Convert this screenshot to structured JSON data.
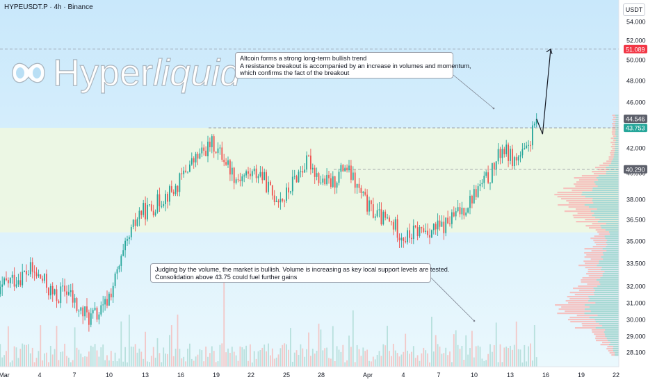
{
  "header": {
    "title": "HYPEUSDT.P · 4h · Binance"
  },
  "currency_button": "USDT",
  "logo": {
    "text_main": "Hyper",
    "text_italic": "liquid"
  },
  "annotations": {
    "top": [
      "Altcoin forms a strong long-term bullish trend",
      "A resistance breakout is accompanied by an increase in volumes and momentum,",
      "which confirms the fact of the breakout"
    ],
    "bottom": [
      "Judging by the volume, the market is bullish. Volume is increasing as key local support levels are tested.",
      "Consolidation above 43.75 could fuel further gains"
    ]
  },
  "colors": {
    "up": "#26a69a",
    "down": "#ef5350",
    "bg_top": "#c9e8fb",
    "bg_bottom": "#e9f7fd",
    "zone": "#eef7e2",
    "profile_down": "#f7b8b6",
    "profile_up": "#9fdcd6",
    "tag_red": "#f23645",
    "tag_dark": "#5d606b",
    "tag_green": "#26a69a"
  },
  "chart_data": {
    "type": "candlestick",
    "symbol": "HYPEUSDT.P",
    "timeframe": "4h",
    "exchange": "Binance",
    "y_range": [
      27.5,
      56.0
    ],
    "y_ticks": [
      "54.000",
      "52.000",
      "50.000",
      "48.000",
      "46.000",
      "42.000",
      "40.000",
      "38.000",
      "36.500",
      "35.000",
      "33.500",
      "32.000",
      "31.000",
      "30.000",
      "29.000",
      "28.100"
    ],
    "x_ticks": [
      "Mar",
      "4",
      "7",
      "10",
      "13",
      "16",
      "19",
      "22",
      "25",
      "28",
      "Apr",
      "4",
      "7",
      "10",
      "13",
      "16",
      "19",
      "22"
    ],
    "price_tags": [
      {
        "value": 51.089,
        "label": "51.089",
        "style": "red"
      },
      {
        "value": 44.546,
        "label": "44.546",
        "style": "dark"
      },
      {
        "value": 43.753,
        "label": "43.753",
        "style": "green"
      },
      {
        "value": 40.29,
        "label": "40.290",
        "style": "dark"
      }
    ],
    "support_zone": [
      35.6,
      43.753
    ],
    "dashed_levels": [
      51.089,
      43.753,
      40.29
    ],
    "closes_anchors": [
      [
        "Feb 28",
        31.0
      ],
      [
        "Mar 1",
        32.2
      ],
      [
        "Mar 3",
        33.0
      ],
      [
        "Mar 4",
        32.4
      ],
      [
        "Mar 5",
        31.3
      ],
      [
        "Mar 6",
        31.8
      ],
      [
        "Mar 7",
        30.5
      ],
      [
        "Mar 8",
        30.1
      ],
      [
        "Mar 9",
        30.5
      ],
      [
        "Mar 10",
        32.4
      ],
      [
        "Mar 11",
        34.8
      ],
      [
        "Mar 12",
        37.0
      ],
      [
        "Mar 13",
        37.3
      ],
      [
        "Mar 14",
        38.2
      ],
      [
        "Mar 15",
        38.8
      ],
      [
        "Mar 16",
        40.5
      ],
      [
        "Mar 17",
        41.4
      ],
      [
        "Mar 18",
        42.4
      ],
      [
        "Mar 19",
        41.2
      ],
      [
        "Mar 20",
        39.6
      ],
      [
        "Mar 21",
        39.9
      ],
      [
        "Mar 22",
        40.0
      ],
      [
        "Mar 23",
        38.3
      ],
      [
        "Mar 24",
        38.1
      ],
      [
        "Mar 25",
        39.8
      ],
      [
        "Mar 26",
        41.0
      ],
      [
        "Mar 27",
        39.4
      ],
      [
        "Mar 28",
        39.2
      ],
      [
        "Mar 29",
        40.6
      ],
      [
        "Mar 30",
        38.9
      ],
      [
        "Mar 31",
        37.3
      ],
      [
        "Apr 1",
        36.6
      ],
      [
        "Apr 2",
        36.1
      ],
      [
        "Apr 3",
        35.2
      ],
      [
        "Apr 4",
        35.7
      ],
      [
        "Apr 5",
        35.8
      ],
      [
        "Apr 6",
        35.9
      ],
      [
        "Apr 7",
        36.7
      ],
      [
        "Apr 8",
        37.5
      ],
      [
        "Apr 9",
        38.8
      ],
      [
        "Apr 10",
        39.8
      ],
      [
        "Apr 11",
        42.0
      ],
      [
        "Apr 12",
        41.0
      ],
      [
        "Apr 13",
        41.7
      ],
      [
        "Apr 13 20:00",
        44.5
      ]
    ],
    "projection": [
      [
        "Apr 13 20:00",
        44.546
      ],
      [
        "Apr 14 08:00",
        43.2
      ],
      [
        "Apr 15 00:00",
        51.089
      ]
    ]
  }
}
